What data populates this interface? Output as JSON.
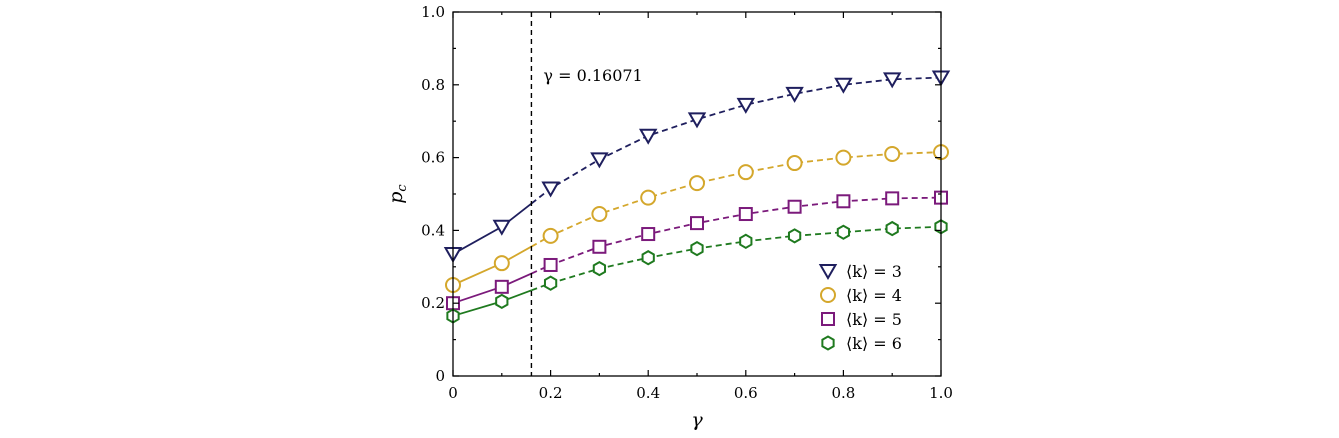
{
  "chart_data": {
    "type": "line",
    "xlabel": "γ",
    "ylabel": "p_c",
    "ylabel_main": "p",
    "ylabel_sub": "c",
    "xlim": [
      0,
      1.0
    ],
    "ylim": [
      0,
      1.0
    ],
    "x_ticks": [
      0,
      0.2,
      0.4,
      0.6,
      0.8,
      1.0
    ],
    "x_tick_labels": [
      "0",
      "0.2",
      "0.4",
      "0.6",
      "0.8",
      "1.0"
    ],
    "y_ticks": [
      0,
      0.2,
      0.4,
      0.6,
      0.8,
      1.0
    ],
    "y_tick_labels": [
      "0",
      "0.2",
      "0.4",
      "0.6",
      "0.8",
      "1.0"
    ],
    "threshold": {
      "x": 0.16071,
      "label": "γ = 0.16071"
    },
    "legend_position": "bottom-right",
    "x": [
      0,
      0.1,
      0.2,
      0.3,
      0.4,
      0.5,
      0.6,
      0.7,
      0.8,
      0.9,
      1.0
    ],
    "series": [
      {
        "name": "⟨k⟩ = 3",
        "marker": "triangle-down",
        "color": "#1f1f5e",
        "values": [
          0.335,
          0.41,
          0.515,
          0.595,
          0.66,
          0.705,
          0.745,
          0.775,
          0.8,
          0.815,
          0.82
        ]
      },
      {
        "name": "⟨k⟩ = 4",
        "marker": "circle",
        "color": "#d4a72c",
        "values": [
          0.25,
          0.31,
          0.385,
          0.445,
          0.49,
          0.53,
          0.56,
          0.585,
          0.6,
          0.61,
          0.615
        ]
      },
      {
        "name": "⟨k⟩ = 5",
        "marker": "square",
        "color": "#7b1a7b",
        "values": [
          0.2,
          0.245,
          0.305,
          0.355,
          0.39,
          0.42,
          0.445,
          0.465,
          0.48,
          0.488,
          0.49
        ]
      },
      {
        "name": "⟨k⟩ = 6",
        "marker": "hexagon",
        "color": "#1f7a1f",
        "values": [
          0.165,
          0.205,
          0.255,
          0.295,
          0.325,
          0.35,
          0.37,
          0.385,
          0.395,
          0.405,
          0.41
        ]
      }
    ]
  }
}
